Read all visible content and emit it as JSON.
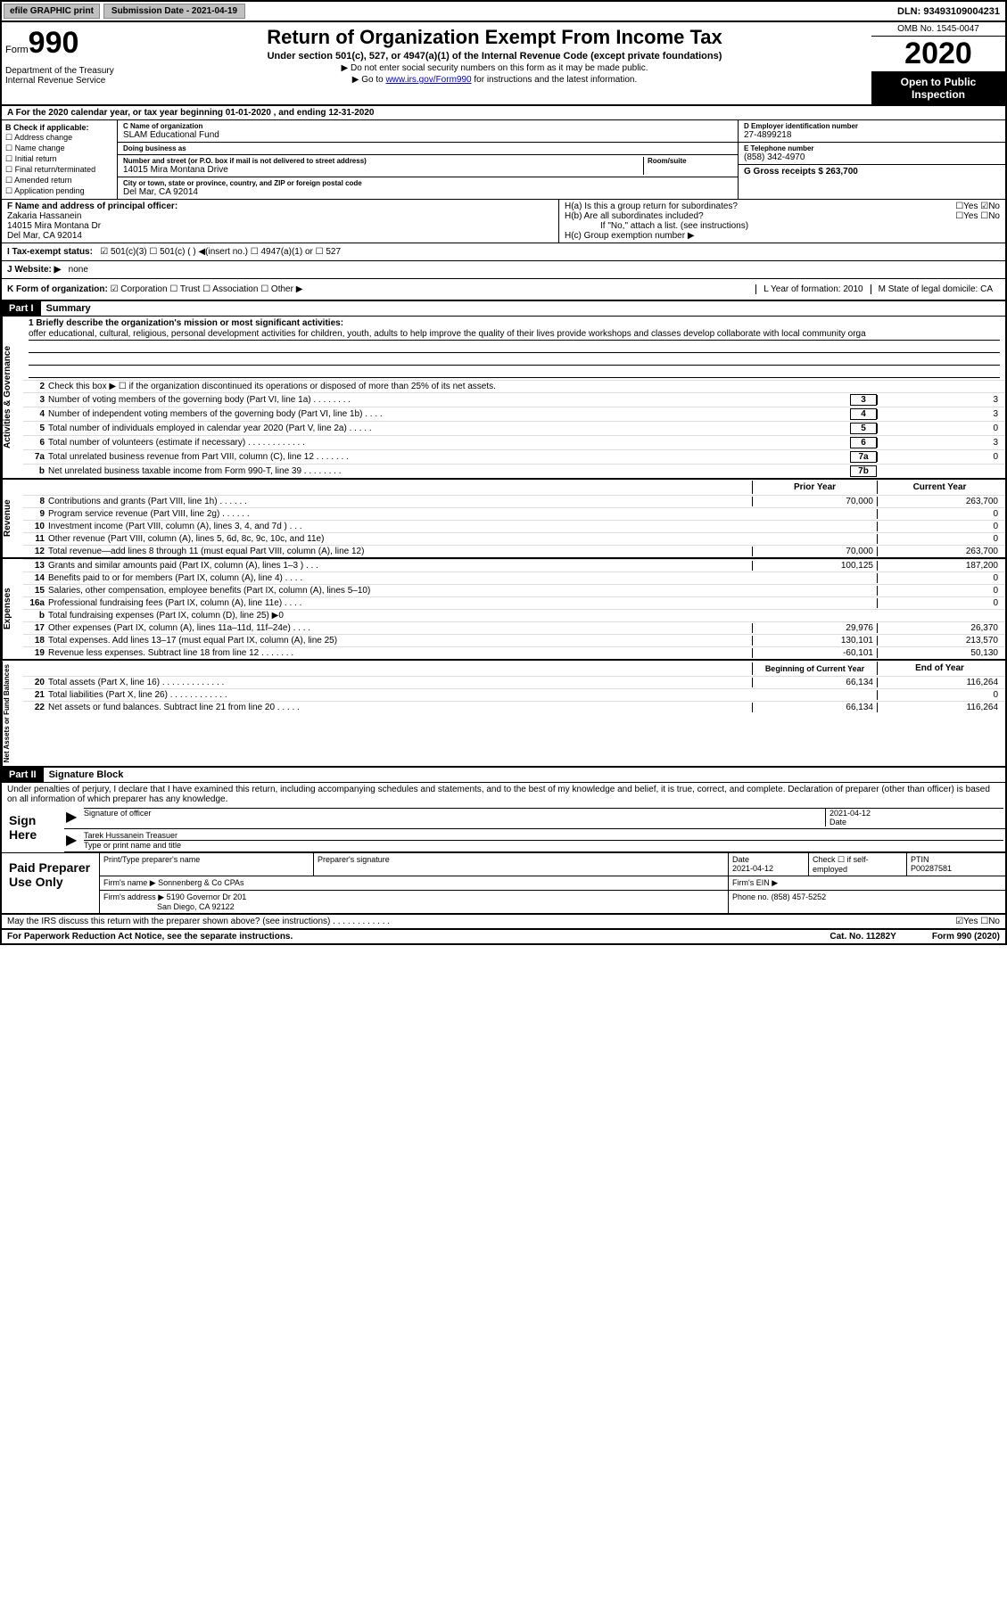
{
  "topbar": {
    "graphic": "efile GRAPHIC print",
    "submission": "Submission Date - 2021-04-19",
    "dln": "DLN: 93493109004231"
  },
  "header": {
    "form_label": "Form",
    "form_num": "990",
    "dept": "Department of the Treasury\nInternal Revenue Service",
    "title": "Return of Organization Exempt From Income Tax",
    "subtitle": "Under section 501(c), 527, or 4947(a)(1) of the Internal Revenue Code (except private foundations)",
    "note1": "▶ Do not enter social security numbers on this form as it may be made public.",
    "note2_pre": "▶ Go to ",
    "note2_link": "www.irs.gov/Form990",
    "note2_post": " for instructions and the latest information.",
    "omb": "OMB No. 1545-0047",
    "year": "2020",
    "open": "Open to Public Inspection"
  },
  "period": "A For the 2020 calendar year, or tax year beginning 01-01-2020    , and ending 12-31-2020",
  "section_b": {
    "label": "B Check if applicable:",
    "items": [
      "☐ Address change",
      "☐ Name change",
      "☐ Initial return",
      "☐ Final return/terminated",
      "☐ Amended return",
      "☐ Application pending"
    ]
  },
  "section_c": {
    "name_label": "C Name of organization",
    "name": "SLAM Educational Fund",
    "dba_label": "Doing business as",
    "dba": "",
    "addr_label": "Number and street (or P.O. box if mail is not delivered to street address)",
    "room_label": "Room/suite",
    "addr": "14015 Mira Montana Drive",
    "city_label": "City or town, state or province, country, and ZIP or foreign postal code",
    "city": "Del Mar, CA  92014"
  },
  "section_d": {
    "label": "D Employer identification number",
    "val": "27-4899218"
  },
  "section_e": {
    "label": "E Telephone number",
    "val": "(858) 342-4970"
  },
  "section_g": {
    "label": "G Gross receipts $ 263,700"
  },
  "section_f": {
    "label": "F  Name and address of principal officer:",
    "name": "Zakaria Hassanein",
    "addr": "14015 Mira Montana Dr",
    "city": "Del Mar, CA  92014"
  },
  "section_h": {
    "ha": "H(a)  Is this a group return for subordinates?",
    "ha_yn": "☐Yes ☑No",
    "hb": "H(b)  Are all subordinates included?",
    "hb_yn": "☐Yes ☐No",
    "hb_note": "If \"No,\" attach a list. (see instructions)",
    "hc": "H(c)  Group exemption number ▶"
  },
  "tax_status": {
    "label": "I  Tax-exempt status:",
    "opts": "☑ 501(c)(3)   ☐ 501(c) (  ) ◀(insert no.)   ☐ 4947(a)(1) or  ☐ 527"
  },
  "website": {
    "label": "J  Website: ▶",
    "val": "none"
  },
  "k_form": {
    "label": "K Form of organization:",
    "opts": "☑ Corporation ☐ Trust ☐ Association ☐ Other ▶",
    "l_label": "L Year of formation: 2010",
    "m_label": "M State of legal domicile: CA"
  },
  "part1": {
    "hdr": "Part I",
    "title": "Summary",
    "line1_label": "1  Briefly describe the organization's mission or most significant activities:",
    "mission": "offer educational, cultural, religious, personal development activities for children, youth, adults to help improve the quality of their lives provide workshops and classes develop collaborate with local community orga",
    "line2": "Check this box ▶ ☐ if the organization discontinued its operations or disposed of more than 25% of its net assets.",
    "sides": {
      "ag": "Activities & Governance",
      "rev": "Revenue",
      "exp": "Expenses",
      "na": "Net Assets or Fund Balances"
    },
    "rows_ag": [
      {
        "n": "3",
        "t": "Number of voting members of the governing body (Part VI, line 1a)  .  .  .  .  .  .  .  .",
        "b": "3",
        "v": "3"
      },
      {
        "n": "4",
        "t": "Number of independent voting members of the governing body (Part VI, line 1b)  .  .  .  .",
        "b": "4",
        "v": "3"
      },
      {
        "n": "5",
        "t": "Total number of individuals employed in calendar year 2020 (Part V, line 2a)  .  .  .  .  .",
        "b": "5",
        "v": "0"
      },
      {
        "n": "6",
        "t": "Total number of volunteers (estimate if necessary)  .  .  .  .  .  .  .  .  .  .  .  .",
        "b": "6",
        "v": "3"
      },
      {
        "n": "7a",
        "t": "Total unrelated business revenue from Part VIII, column (C), line 12  .  .  .  .  .  .  .",
        "b": "7a",
        "v": "0"
      },
      {
        "n": "b",
        "t": "Net unrelated business taxable income from Form 990-T, line 39  .  .  .  .  .  .  .  .",
        "b": "7b",
        "v": ""
      }
    ],
    "col_hdrs": {
      "prior": "Prior Year",
      "current": "Current Year"
    },
    "rows_rev": [
      {
        "n": "8",
        "t": "Contributions and grants (Part VIII, line 1h)  .  .  .  .  .  .",
        "p": "70,000",
        "c": "263,700"
      },
      {
        "n": "9",
        "t": "Program service revenue (Part VIII, line 2g)  .  .  .  .  .  .",
        "p": "",
        "c": "0"
      },
      {
        "n": "10",
        "t": "Investment income (Part VIII, column (A), lines 3, 4, and 7d )  .  .  .",
        "p": "",
        "c": "0"
      },
      {
        "n": "11",
        "t": "Other revenue (Part VIII, column (A), lines 5, 6d, 8c, 9c, 10c, and 11e)",
        "p": "",
        "c": "0"
      },
      {
        "n": "12",
        "t": "Total revenue—add lines 8 through 11 (must equal Part VIII, column (A), line 12)",
        "p": "70,000",
        "c": "263,700"
      }
    ],
    "rows_exp": [
      {
        "n": "13",
        "t": "Grants and similar amounts paid (Part IX, column (A), lines 1–3 )  .  .  .",
        "p": "100,125",
        "c": "187,200"
      },
      {
        "n": "14",
        "t": "Benefits paid to or for members (Part IX, column (A), line 4)  .  .  .  .",
        "p": "",
        "c": "0"
      },
      {
        "n": "15",
        "t": "Salaries, other compensation, employee benefits (Part IX, column (A), lines 5–10)",
        "p": "",
        "c": "0"
      },
      {
        "n": "16a",
        "t": "Professional fundraising fees (Part IX, column (A), line 11e)  .  .  .  .",
        "p": "",
        "c": "0"
      },
      {
        "n": "b",
        "t": "Total fundraising expenses (Part IX, column (D), line 25) ▶0",
        "p": "—shaded—",
        "c": "—shaded—"
      },
      {
        "n": "17",
        "t": "Other expenses (Part IX, column (A), lines 11a–11d, 11f–24e)  .  .  .  .",
        "p": "29,976",
        "c": "26,370"
      },
      {
        "n": "18",
        "t": "Total expenses. Add lines 13–17 (must equal Part IX, column (A), line 25)",
        "p": "130,101",
        "c": "213,570"
      },
      {
        "n": "19",
        "t": "Revenue less expenses. Subtract line 18 from line 12  .  .  .  .  .  .  .",
        "p": "-60,101",
        "c": "50,130"
      }
    ],
    "na_hdrs": {
      "beg": "Beginning of Current Year",
      "end": "End of Year"
    },
    "rows_na": [
      {
        "n": "20",
        "t": "Total assets (Part X, line 16)  .  .  .  .  .  .  .  .  .  .  .  .  .",
        "p": "66,134",
        "c": "116,264"
      },
      {
        "n": "21",
        "t": "Total liabilities (Part X, line 26)  .  .  .  .  .  .  .  .  .  .  .  .",
        "p": "",
        "c": "0"
      },
      {
        "n": "22",
        "t": "Net assets or fund balances. Subtract line 21 from line 20  .  .  .  .  .",
        "p": "66,134",
        "c": "116,264"
      }
    ]
  },
  "part2": {
    "hdr": "Part II",
    "title": "Signature Block",
    "declaration": "Under penalties of perjury, I declare that I have examined this return, including accompanying schedules and statements, and to the best of my knowledge and belief, it is true, correct, and complete. Declaration of preparer (other than officer) is based on all information of which preparer has any knowledge.",
    "sign_here": "Sign Here",
    "sig_officer": "Signature of officer",
    "sig_date_label": "Date",
    "sig_date": "2021-04-12",
    "sig_name": "Tarek Hussanein Treasuer",
    "sig_name_label": "Type or print name and title",
    "paid_prep": "Paid Preparer Use Only",
    "prep_name_label": "Print/Type preparer's name",
    "prep_sig_label": "Preparer's signature",
    "prep_date_label": "Date",
    "prep_date": "2021-04-12",
    "prep_check": "Check ☐ if self-employed",
    "ptin_label": "PTIN",
    "ptin": "P00287581",
    "firm_name_label": "Firm's name     ▶",
    "firm_name": "Sonnenberg & Co CPAs",
    "firm_ein_label": "Firm's EIN ▶",
    "firm_addr_label": "Firm's address ▶",
    "firm_addr1": "5190 Governor Dr 201",
    "firm_addr2": "San Diego, CA  92122",
    "phone_label": "Phone no.",
    "phone": "(858) 457-5252",
    "discuss": "May the IRS discuss this return with the preparer shown above? (see instructions)  .  .  .  .  .  .  .  .  .  .  .  .",
    "discuss_yn": "☑Yes ☐No"
  },
  "footer": {
    "paperwork": "For Paperwork Reduction Act Notice, see the separate instructions.",
    "cat": "Cat. No. 11282Y",
    "form": "Form 990 (2020)"
  }
}
